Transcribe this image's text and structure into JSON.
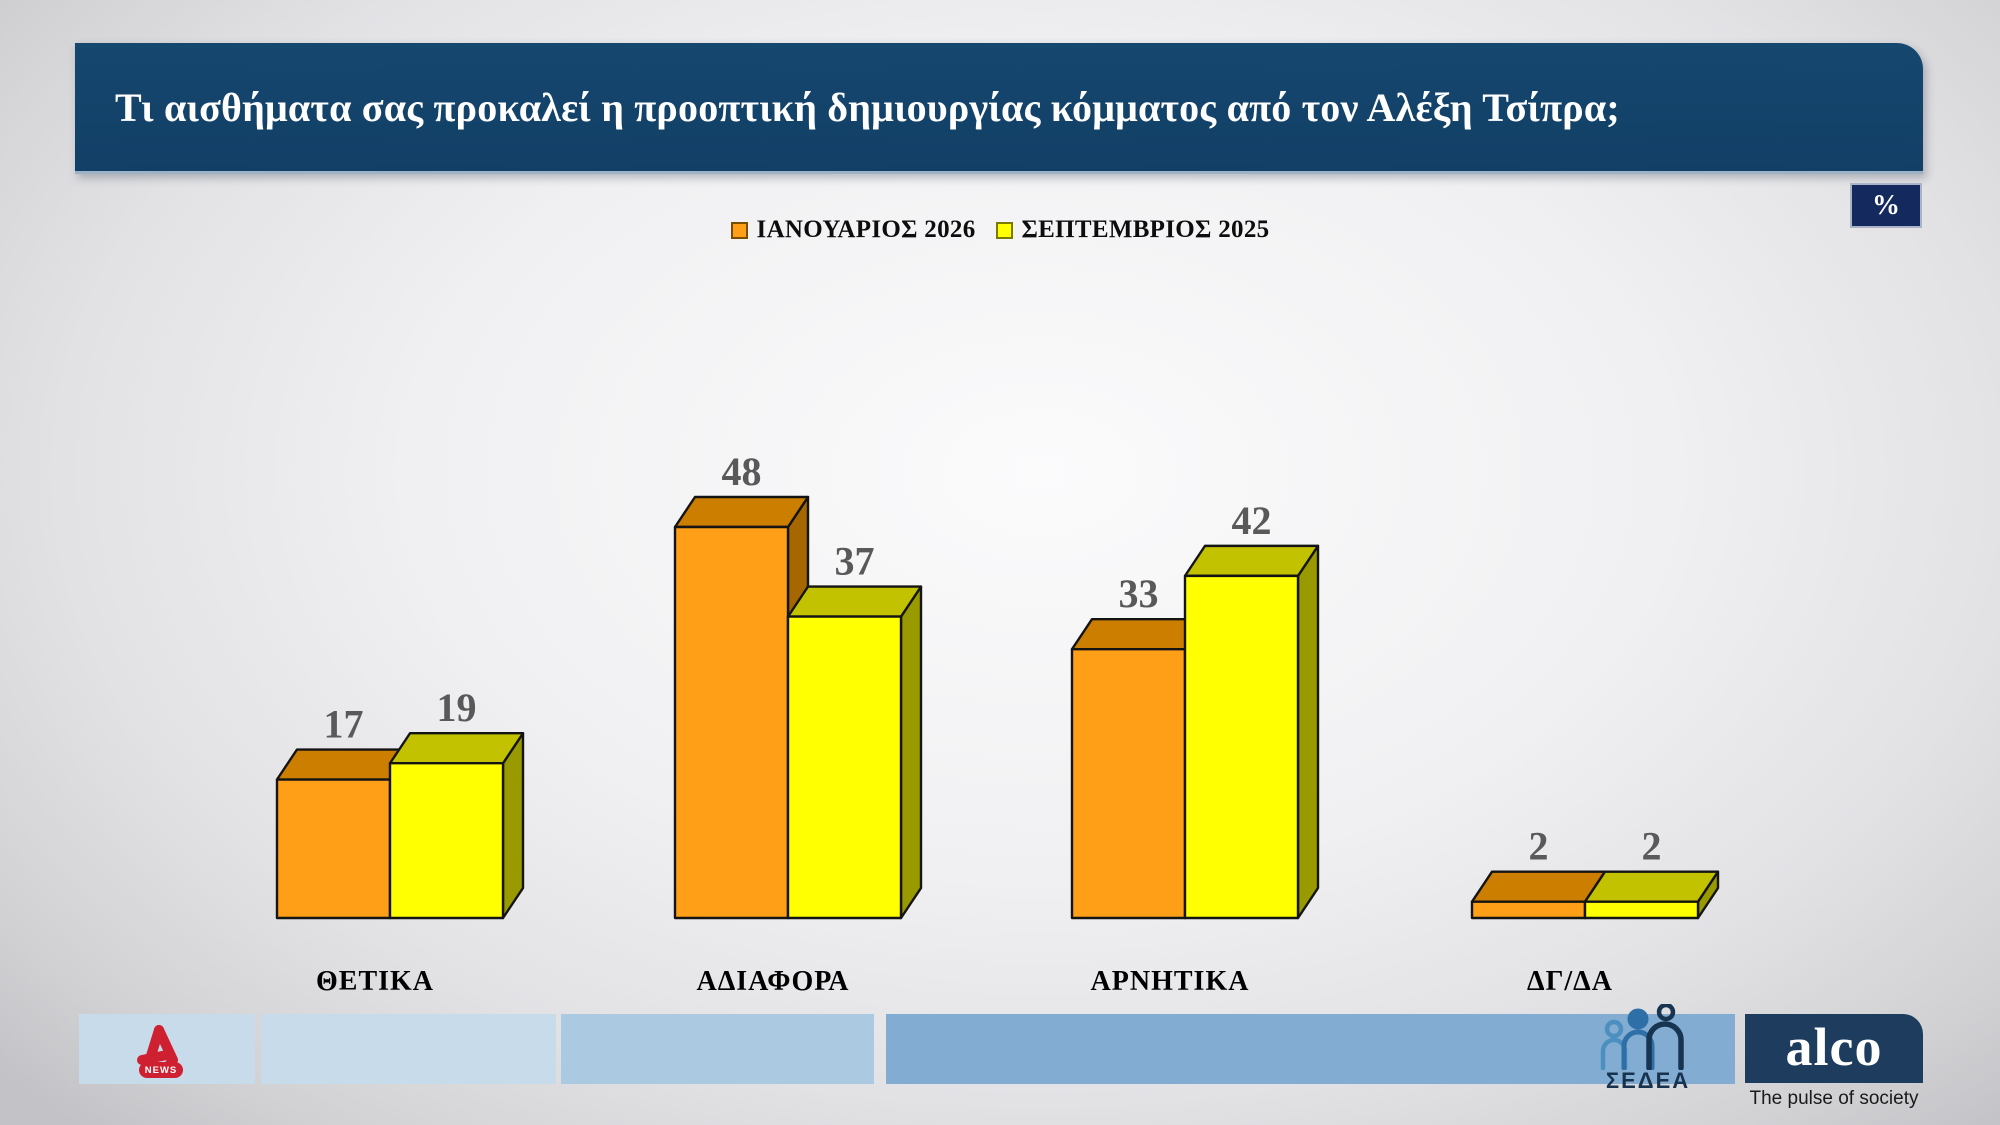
{
  "header": {
    "title": "Τι αισθήματα σας προκαλεί η προοπτική δημιουργίας κόμματος από τον Αλέξη Τσίπρα;"
  },
  "percent_badge": "%",
  "chart_data": {
    "type": "bar",
    "style": "3d-grouped-columns",
    "title": "Τι αισθήματα σας προκαλεί η προοπτική δημιουργίας κόμματος από τον Αλέξη Τσίπρα;",
    "unit": "%",
    "categories": [
      "ΘΕΤΙΚΑ",
      "ΑΔΙΑΦΟΡΑ",
      "ΑΡΝΗΤΙΚΑ",
      "ΔΓ/ΔΑ"
    ],
    "series": [
      {
        "name": "ΙΑΝΟΥΑΡΙΟΣ 2026",
        "values": [
          17,
          48,
          33,
          2
        ],
        "front_color": "#FF9E17",
        "top_color": "#CC7E00",
        "side_color": "#A66600",
        "marker_border": "#7a4e00"
      },
      {
        "name": "ΣΕΠΤΕΜΒΡΙΟΣ 2025",
        "values": [
          19,
          37,
          42,
          2
        ],
        "front_color": "#FFFF02",
        "top_color": "#C2C200",
        "side_color": "#999900",
        "marker_border": "#7a7a00"
      }
    ],
    "ylim": [
      0,
      48
    ],
    "grid": false,
    "axes_hidden": true,
    "legend_position": "top-center",
    "value_label_color": "#595959",
    "category_label_color": "#000000"
  },
  "footer": {
    "alpha_news": {
      "news_label": "NEWS"
    },
    "sedea": {
      "label": "ΣΕΔΕΑ"
    },
    "alco": {
      "wordmark": "alco",
      "tagline": "The pulse of society"
    }
  }
}
